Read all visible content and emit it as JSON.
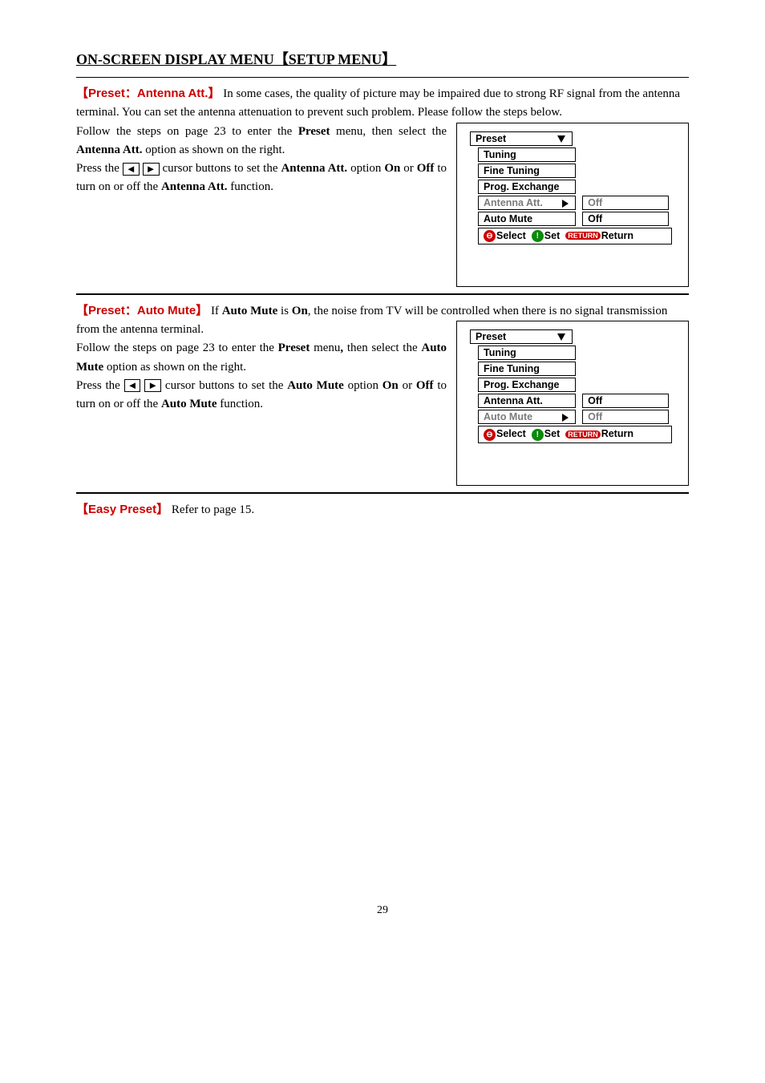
{
  "page_title": "ON-SCREEN DISPLAY MENU【SETUP MENU】",
  "sec1": {
    "heading": "【Preset：Antenna Att.】",
    "intro": "In some cases, the quality of picture may be impaired due to strong RF signal from the antenna terminal. You can set the antenna attenuation to prevent such problem. Please follow the steps below.",
    "body1a": "Follow the steps on page 23 to enter the ",
    "body1b": "Preset",
    "body1c": " menu, then select the ",
    "body1d": "Antenna Att.",
    "body1e": " option as shown on the right.",
    "body2a": "Press the ",
    "body2b": " cursor buttons to set the ",
    "body2c": "Antenna Att.",
    "body2d": " option ",
    "body2e": "On",
    "body2f": " or ",
    "body2g": "Off",
    "body2h": " to turn on or off the ",
    "body2i": "Antenna Att.",
    "body2j": " function."
  },
  "menu1": {
    "header": "Preset",
    "r1": "Tuning",
    "r2": "Fine Tuning",
    "r3": "Prog. Exchange",
    "r4": "Antenna Att.",
    "r4v": "Off",
    "r5": "Auto Mute",
    "r5v": "Off",
    "bar_select": "Select",
    "bar_set": "Set",
    "bar_return_badge": "RETURN",
    "bar_return": "Return"
  },
  "sec2": {
    "heading": "【Preset：Auto Mute】",
    "intro_a": "If ",
    "intro_b": "Auto Mute",
    "intro_c": " is ",
    "intro_d": "On",
    "intro_e": ", the noise from TV will be controlled when there is no signal transmission from the antenna terminal.",
    "body1a": "Follow the steps on page 23 to enter the ",
    "body1b": "Preset",
    "body1c": " menu",
    "body1d": ",",
    "body1e": " then select the ",
    "body1f": "Auto Mute",
    "body1g": " option as shown on the right.",
    "body2a": "Press the ",
    "body2b": " cursor buttons to set the ",
    "body2c": "Auto Mute",
    "body2d": " option ",
    "body2e": "On",
    "body2f": " or ",
    "body2g": "Off",
    "body2h": " to turn on or off the ",
    "body2i": "Auto Mute",
    "body2j": " function."
  },
  "menu2": {
    "header": "Preset",
    "r1": "Tuning",
    "r2": "Fine Tuning",
    "r3": "Prog. Exchange",
    "r4": "Antenna Att.",
    "r4v": "Off",
    "r5": "Auto Mute",
    "r5v": "Off",
    "bar_select": "Select",
    "bar_set": "Set",
    "bar_return_badge": "RETURN",
    "bar_return": "Return"
  },
  "sec3": {
    "heading": "【Easy Preset】",
    "text": "Refer to page 15."
  },
  "page_number": "29"
}
